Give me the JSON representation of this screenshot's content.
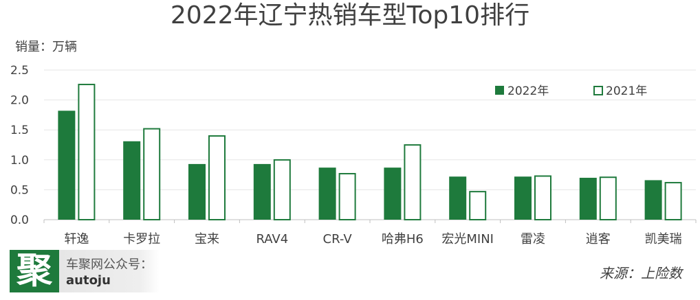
{
  "title": "2022年辽宁热销车型Top10排行",
  "unit_label": "销量：万辆",
  "source_label": "来源：上险数",
  "logo": {
    "glyph": "聚"
  },
  "account": {
    "line1": "车聚网公众号：",
    "line2": "autoju"
  },
  "colors": {
    "series_2022": "#1e7a3c",
    "series_2021_stroke": "#1e7a3c",
    "series_2021_fill": "#ffffff",
    "grid": "#e6e6e6",
    "axis": "#bfbfbf"
  },
  "chart_data": {
    "type": "bar",
    "title": "2022年辽宁热销车型Top10排行",
    "ylabel": "销量：万辆",
    "xlabel": "",
    "ylim": [
      0,
      2.5
    ],
    "yticks": [
      "0.0",
      "0.5",
      "1.0",
      "1.5",
      "2.0",
      "2.5"
    ],
    "grid": true,
    "legend_position": "top-right",
    "categories": [
      "轩逸",
      "卡罗拉",
      "宝来",
      "RAV4",
      "CR-V",
      "哈弗H6",
      "宏光MINI",
      "雷凌",
      "逍客",
      "凯美瑞"
    ],
    "series": [
      {
        "name": "2022年",
        "values": [
          1.82,
          1.31,
          0.93,
          0.93,
          0.87,
          0.87,
          0.72,
          0.72,
          0.7,
          0.66
        ]
      },
      {
        "name": "2021年",
        "values": [
          2.27,
          1.53,
          1.41,
          1.01,
          0.78,
          1.26,
          0.48,
          0.74,
          0.72,
          0.63
        ]
      }
    ]
  }
}
